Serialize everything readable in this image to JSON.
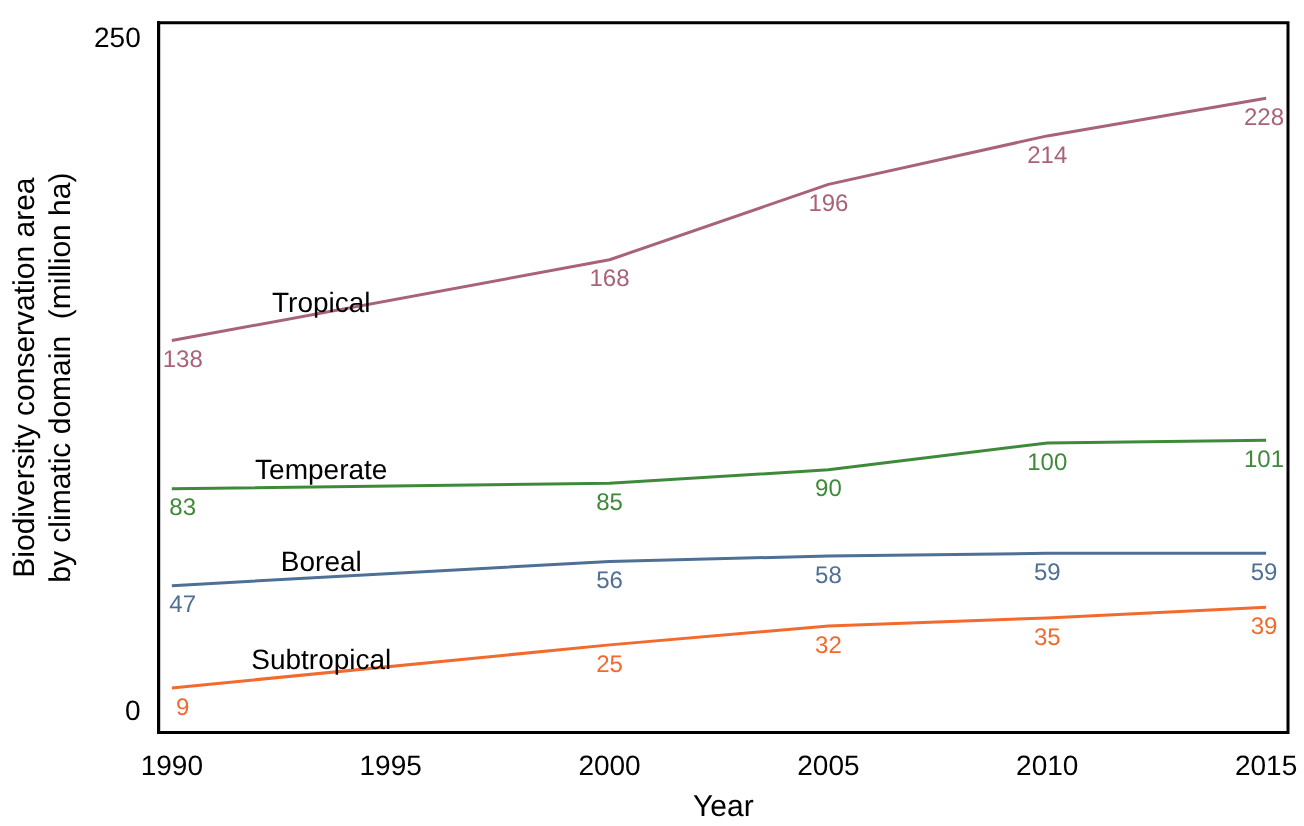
{
  "chart_data": {
    "type": "line",
    "xlabel": "Year",
    "ylabel": "Biodiversity conservation area\nby climatic domain  (million ha)",
    "x": [
      1990,
      2000,
      2005,
      2010,
      2015
    ],
    "xlim": [
      1989.7,
      2015.5
    ],
    "xticks": [
      1990,
      1995,
      2000,
      2005,
      2010,
      2015
    ],
    "ylim": [
      -7.5,
      256
    ],
    "yticks": [
      0,
      250
    ],
    "grid": false,
    "legend": false,
    "marker": "none",
    "line_style": "solid",
    "data_labels": true,
    "series": [
      {
        "name": "Tropical",
        "color": "#a8627a",
        "values": [
          138,
          168,
          196,
          214,
          228
        ]
      },
      {
        "name": "Temperate",
        "color": "#3f8a3a",
        "values": [
          83,
          85,
          90,
          100,
          101
        ]
      },
      {
        "name": "Boreal",
        "color": "#4f6f95",
        "values": [
          47,
          56,
          58,
          59,
          59
        ]
      },
      {
        "name": "Subtropical",
        "color": "#f26a2e",
        "values": [
          9,
          25,
          32,
          35,
          39
        ]
      }
    ]
  }
}
